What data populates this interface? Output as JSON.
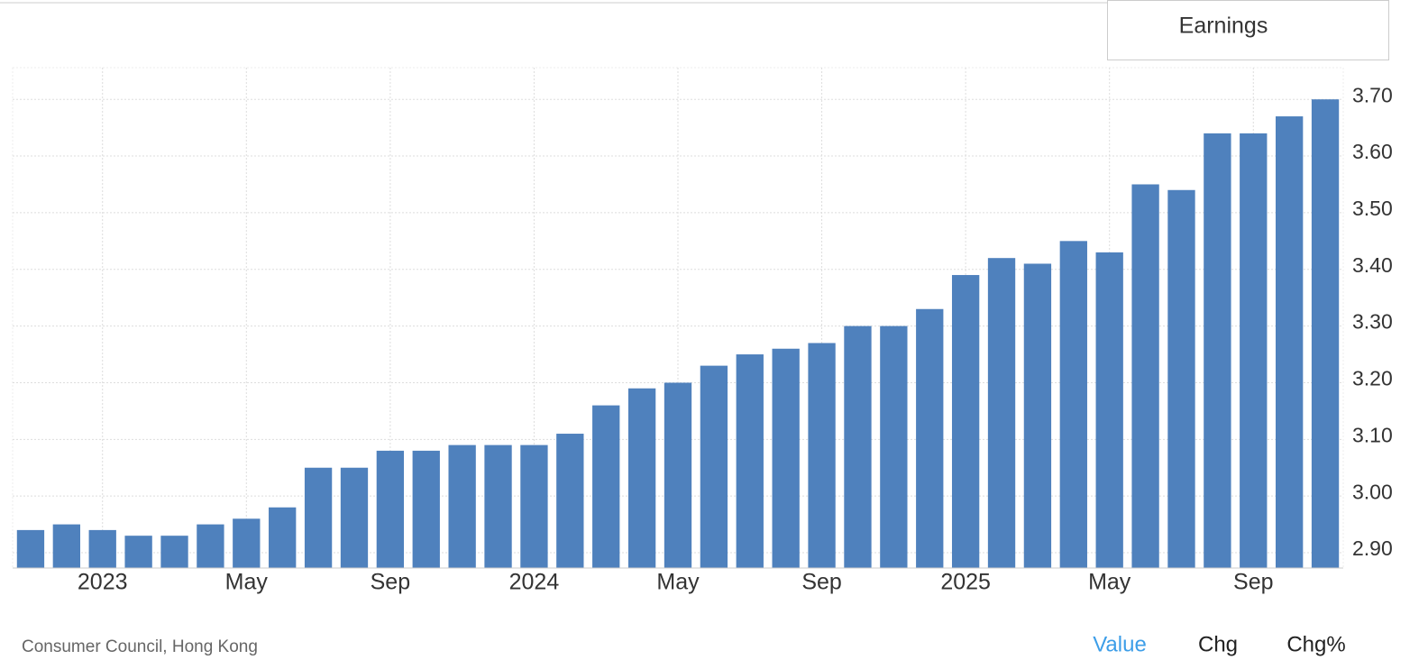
{
  "chart_data": {
    "type": "bar",
    "categories": [
      null,
      null,
      "2023",
      null,
      null,
      null,
      "May",
      null,
      null,
      null,
      "Sep",
      null,
      null,
      null,
      "2024",
      null,
      null,
      null,
      "May",
      null,
      null,
      null,
      "Sep",
      null,
      null,
      null,
      "2025",
      null,
      null,
      null,
      "May",
      null,
      null,
      null,
      "Sep",
      null,
      null
    ],
    "values": [
      2.94,
      2.95,
      2.94,
      2.93,
      2.93,
      2.95,
      2.96,
      2.98,
      3.05,
      3.05,
      3.08,
      3.08,
      3.09,
      3.09,
      3.09,
      3.11,
      3.16,
      3.19,
      3.2,
      3.23,
      3.25,
      3.26,
      3.27,
      3.3,
      3.3,
      3.33,
      3.39,
      3.42,
      3.41,
      3.45,
      3.43,
      3.55,
      3.54,
      3.64,
      3.64,
      3.67,
      3.7
    ],
    "color": "#4f81bd",
    "ylim": [
      2.873,
      3.756
    ],
    "yticks": [
      {
        "value": 2.9,
        "label": "2.90"
      },
      {
        "value": 3.0,
        "label": "3.00"
      },
      {
        "value": 3.1,
        "label": "3.10"
      },
      {
        "value": 3.2,
        "label": "3.20"
      },
      {
        "value": 3.3,
        "label": "3.30"
      },
      {
        "value": 3.4,
        "label": "3.40"
      },
      {
        "value": 3.5,
        "label": "3.50"
      },
      {
        "value": 3.6,
        "label": "3.60"
      },
      {
        "value": 3.7,
        "label": "3.70"
      }
    ],
    "grid": true
  },
  "button": "Earnings",
  "source": "Consumer Council, Hong Kong",
  "tabs": [
    "Value",
    "Chg",
    "Chg%"
  ]
}
